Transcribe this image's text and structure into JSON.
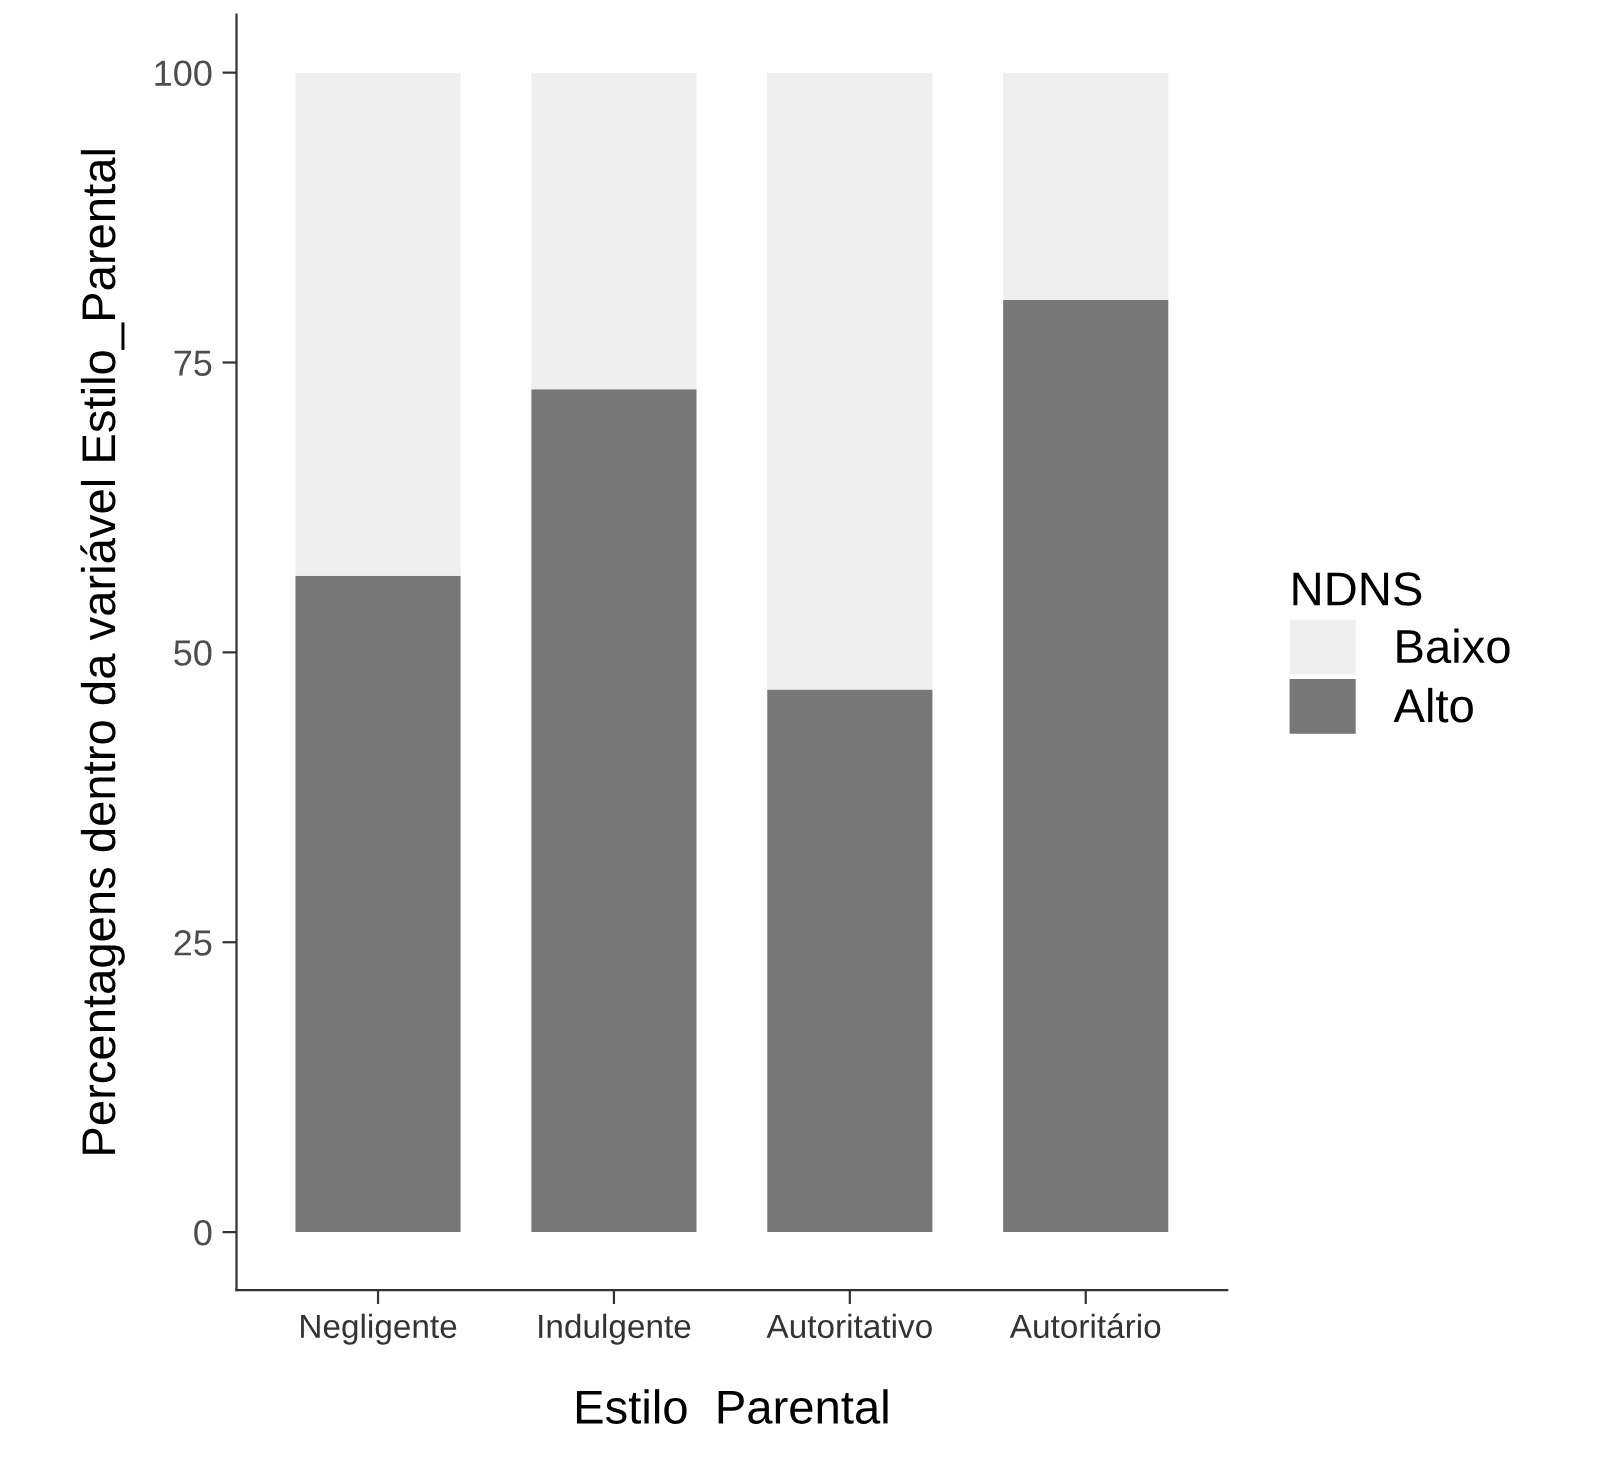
{
  "chart_data": {
    "type": "bar",
    "stacked": true,
    "xlabel": "Estilo  Parental",
    "ylabel": "Percentagens dentro da variável Estilo_Parental",
    "legend_title": "NDNS",
    "legend": "right",
    "categories": [
      "Negligente",
      "Indulgente",
      "Autoritativo",
      "Autoritário"
    ],
    "series": [
      {
        "name": "Alto",
        "color": "#777777",
        "values": [
          56.6,
          72.7,
          46.8,
          80.4
        ]
      },
      {
        "name": "Baixo",
        "color": "#efefef",
        "values": [
          43.4,
          27.3,
          53.2,
          19.6
        ]
      }
    ],
    "ylim": [
      -5,
      105
    ],
    "yticks": [
      0,
      25,
      50,
      75,
      100
    ],
    "grid": false
  }
}
